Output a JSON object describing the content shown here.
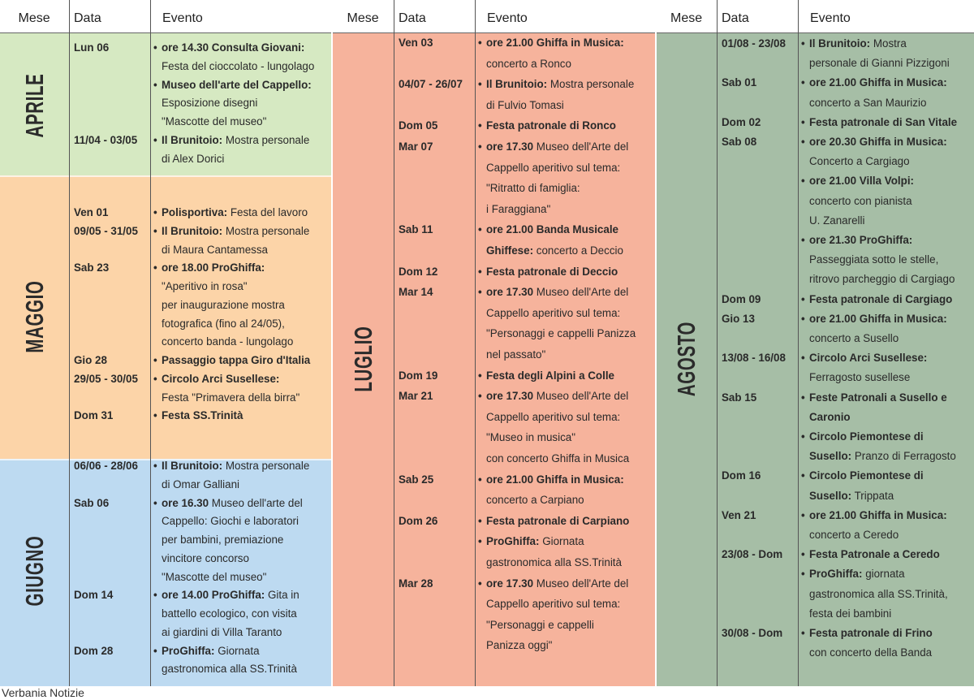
{
  "headers": {
    "month": "Mese",
    "date": "Data",
    "event": "Evento"
  },
  "colors": {
    "aprile": "#d6e9c2",
    "maggio": "#fcd4a8",
    "giugno": "#bddaf1",
    "luglio": "#f6b39c",
    "agosto": "#a6bea6"
  },
  "columns": [
    {
      "sections": [
        {
          "month": "APRILE",
          "lines": [
            {
              "d": "Lun 06",
              "bl": true,
              "b": "ore 14.30 Consulta Giovani:",
              "t": ""
            },
            {
              "b": "",
              "t": "Festa del cioccolato - lungolago"
            },
            {
              "bl": true,
              "b": "Museo dell'arte del Cappello:",
              "t": ""
            },
            {
              "b": "",
              "t": "Esposizione disegni"
            },
            {
              "b": "",
              "t": "\"Mascotte del museo\""
            },
            {
              "d": "11/04 - 03/05",
              "bl": true,
              "b": "Il Brunitoio:",
              "t": " Mostra personale"
            },
            {
              "b": "",
              "t": "di Alex Dorici"
            }
          ]
        },
        {
          "month": "MAGGIO",
          "lines": [
            {
              "d": "Ven 01",
              "bl": true,
              "b": "Polisportiva:",
              "t": " Festa del lavoro"
            },
            {
              "d": "09/05 - 31/05",
              "bl": true,
              "b": "Il Brunitoio:",
              "t": " Mostra personale"
            },
            {
              "b": "",
              "t": "di Maura Cantamessa"
            },
            {
              "d": "Sab 23",
              "bl": true,
              "b": "ore 18.00 ProGhiffa:",
              "t": ""
            },
            {
              "b": "",
              "t": "\"Aperitivo in rosa\""
            },
            {
              "b": "",
              "t": "per inaugurazione mostra"
            },
            {
              "b": "",
              "t": "fotografica (fino al 24/05),"
            },
            {
              "b": "",
              "t": "concerto banda - lungolago"
            },
            {
              "d": "Gio 28",
              "bl": true,
              "b": "Passaggio tappa Giro d'Italia",
              "t": ""
            },
            {
              "d": "29/05 - 30/05",
              "bl": true,
              "b": "Circolo Arci Susellese:",
              "t": ""
            },
            {
              "b": "",
              "t": "Festa \"Primavera della birra\""
            },
            {
              "d": "Dom 31",
              "bl": true,
              "b": "Festa SS.Trinità",
              "t": ""
            }
          ]
        },
        {
          "month": "GIUGNO",
          "lines": [
            {
              "d": "06/06 - 28/06",
              "bl": true,
              "b": "Il Brunitoio:",
              "t": " Mostra personale"
            },
            {
              "b": "",
              "t": "di Omar Galliani"
            },
            {
              "d": "Sab 06",
              "bl": true,
              "b": "ore 16.30",
              "t": " Museo dell'arte del"
            },
            {
              "b": "",
              "t": "Cappello: Giochi e laboratori"
            },
            {
              "b": "",
              "t": "per bambini, premiazione"
            },
            {
              "b": "",
              "t": "vincitore concorso"
            },
            {
              "b": "",
              "t": "\"Mascotte del museo\""
            },
            {
              "d": "Dom 14",
              "bl": true,
              "b": "ore 14.00 ProGhiffa:",
              "t": " Gita in"
            },
            {
              "b": "",
              "t": "battello ecologico, con visita"
            },
            {
              "b": "",
              "t": "ai giardini di Villa Taranto"
            },
            {
              "d": "Dom 28",
              "bl": true,
              "b": "ProGhiffa:",
              "t": " Giornata"
            },
            {
              "b": "",
              "t": "gastronomica alla SS.Trinità"
            }
          ]
        }
      ]
    },
    {
      "sections": [
        {
          "month": "LUGLIO",
          "lines": [
            {
              "d": "Ven 03",
              "bl": true,
              "b": "ore 21.00 Ghiffa in Musica:",
              "t": ""
            },
            {
              "b": "",
              "t": "concerto a Ronco"
            },
            {
              "d": "04/07 - 26/07",
              "bl": true,
              "b": "Il Brunitoio:",
              "t": " Mostra personale"
            },
            {
              "b": "",
              "t": "di Fulvio Tomasi"
            },
            {
              "d": "Dom 05",
              "bl": true,
              "b": "Festa patronale di Ronco",
              "t": ""
            },
            {
              "d": "Mar 07",
              "bl": true,
              "b": "ore 17.30",
              "t": " Museo dell'Arte del"
            },
            {
              "b": "",
              "t": "Cappello aperitivo sul tema:"
            },
            {
              "b": "",
              "t": "\"Ritratto di famiglia:"
            },
            {
              "b": "",
              "t": "i Faraggiana\""
            },
            {
              "d": "Sab 11",
              "bl": true,
              "b": "ore 21.00 Banda Musicale",
              "t": ""
            },
            {
              "b": "Ghiffese:",
              "t": " concerto a Deccio"
            },
            {
              "d": "Dom 12",
              "bl": true,
              "b": "Festa patronale di Deccio",
              "t": ""
            },
            {
              "d": "Mar 14",
              "bl": true,
              "b": "ore 17.30",
              "t": " Museo dell'Arte del"
            },
            {
              "b": "",
              "t": "Cappello aperitivo sul tema:"
            },
            {
              "b": "",
              "t": "\"Personaggi e cappelli Panizza"
            },
            {
              "b": "",
              "t": "nel passato\""
            },
            {
              "d": "Dom 19",
              "bl": true,
              "b": "Festa degli Alpini a Colle",
              "t": ""
            },
            {
              "d": "Mar 21",
              "bl": true,
              "b": "ore 17.30",
              "t": " Museo dell'Arte del"
            },
            {
              "b": "",
              "t": "Cappello aperitivo sul tema:"
            },
            {
              "b": "",
              "t": "\"Museo in musica\""
            },
            {
              "b": "",
              "t": "con concerto Ghiffa in Musica"
            },
            {
              "d": "Sab 25",
              "bl": true,
              "b": "ore 21.00 Ghiffa in Musica:",
              "t": ""
            },
            {
              "b": "",
              "t": "concerto a Carpiano"
            },
            {
              "d": "Dom 26",
              "bl": true,
              "b": "Festa patronale di Carpiano",
              "t": ""
            },
            {
              "bl": true,
              "b": "ProGhiffa:",
              "t": " Giornata"
            },
            {
              "b": "",
              "t": "gastronomica alla SS.Trinità"
            },
            {
              "d": "Mar 28",
              "bl": true,
              "b": "ore 17.30",
              "t": " Museo dell'Arte del"
            },
            {
              "b": "",
              "t": "Cappello aperitivo sul tema:"
            },
            {
              "b": "",
              "t": "\"Personaggi e cappelli"
            },
            {
              "b": "",
              "t": "Panizza oggi\""
            }
          ]
        }
      ]
    },
    {
      "sections": [
        {
          "month": "AGOSTO",
          "lines": [
            {
              "d": "01/08 - 23/08",
              "bl": true,
              "b": "Il Brunitoio:",
              "t": " Mostra"
            },
            {
              "b": "",
              "t": "personale di Gianni Pizzigoni"
            },
            {
              "d": "Sab 01",
              "bl": true,
              "b": "ore 21.00 Ghiffa in Musica:",
              "t": ""
            },
            {
              "b": "",
              "t": "concerto a San Maurizio"
            },
            {
              "d": "Dom 02",
              "bl": true,
              "b": "Festa patronale di San Vitale",
              "t": ""
            },
            {
              "d": "Sab 08",
              "bl": true,
              "b": "ore 20.30 Ghiffa in Musica:",
              "t": ""
            },
            {
              "b": "",
              "t": "Concerto a Cargiago"
            },
            {
              "bl": true,
              "b": "ore 21.00 Villa Volpi:",
              "t": ""
            },
            {
              "b": "",
              "t": "concerto con pianista"
            },
            {
              "b": "",
              "t": "U. Zanarelli"
            },
            {
              "bl": true,
              "b": "ore 21.30 ProGhiffa:",
              "t": ""
            },
            {
              "b": "",
              "t": "Passeggiata sotto le stelle,"
            },
            {
              "b": "",
              "t": "ritrovo parcheggio di Cargiago"
            },
            {
              "d": "Dom 09",
              "bl": true,
              "b": "Festa patronale di Cargiago",
              "t": ""
            },
            {
              "d": "Gio 13",
              "bl": true,
              "b": "ore 21.00 Ghiffa in Musica:",
              "t": ""
            },
            {
              "b": "",
              "t": "concerto a Susello"
            },
            {
              "d": "13/08 - 16/08",
              "bl": true,
              "b": "Circolo Arci Susellese:",
              "t": ""
            },
            {
              "b": "",
              "t": "Ferragosto susellese"
            },
            {
              "d": "Sab 15",
              "bl": true,
              "b": "Feste Patronali a Susello e",
              "t": ""
            },
            {
              "b": "Caronio",
              "t": ""
            },
            {
              "bl": true,
              "b": "Circolo Piemontese di",
              "t": ""
            },
            {
              "b": "Susello:",
              "t": " Pranzo di Ferragosto"
            },
            {
              "d": "Dom 16",
              "bl": true,
              "b": "Circolo Piemontese di",
              "t": ""
            },
            {
              "b": "Susello:",
              "t": " Trippata"
            },
            {
              "d": "Ven 21",
              "bl": true,
              "b": "ore 21.00 Ghiffa in Musica:",
              "t": ""
            },
            {
              "b": "",
              "t": "concerto a Ceredo"
            },
            {
              "d": "23/08 - Dom",
              "bl": true,
              "b": "Festa Patronale a Ceredo",
              "t": ""
            },
            {
              "bl": true,
              "b": "ProGhiffa:",
              "t": " giornata"
            },
            {
              "b": "",
              "t": "gastronomica alla SS.Trinità,"
            },
            {
              "b": "",
              "t": "festa dei bambini"
            },
            {
              "d": "30/08 - Dom",
              "bl": true,
              "b": "Festa patronale di Frino",
              "t": ""
            },
            {
              "b": "",
              "t": "con concerto della Banda"
            }
          ]
        }
      ]
    }
  ],
  "footer": "Verbania Notizie"
}
